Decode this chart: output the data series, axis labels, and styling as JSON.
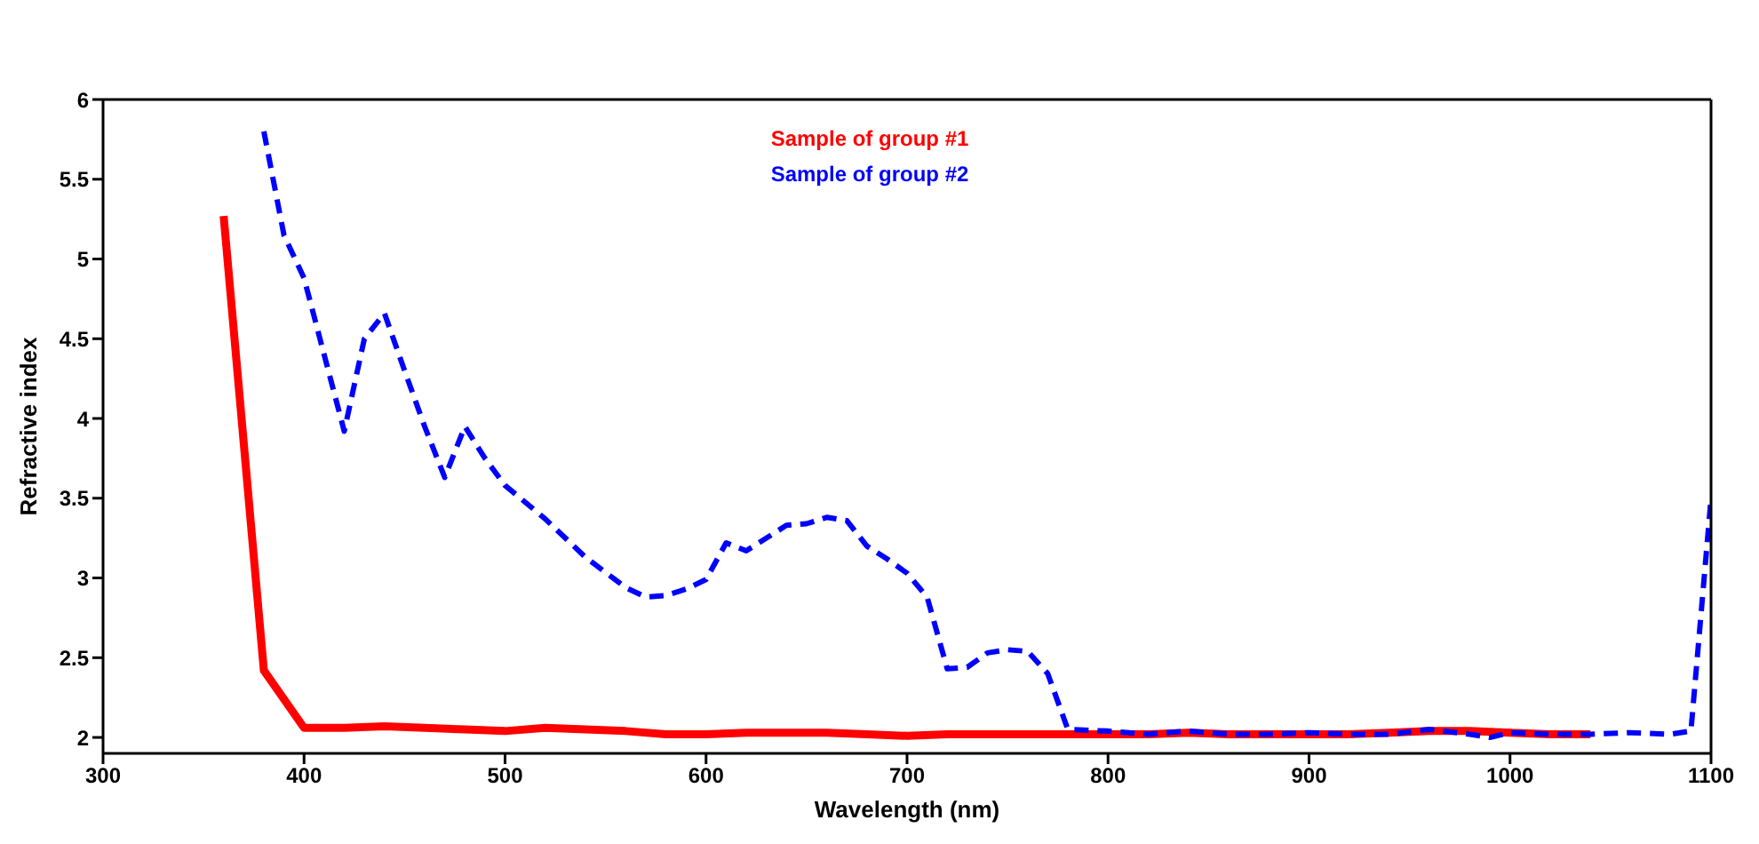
{
  "chart_data": {
    "type": "line",
    "xlabel": "Wavelength (nm)",
    "ylabel": "Refractive index",
    "xlim": [
      300,
      1100
    ],
    "xticks": [
      300,
      400,
      500,
      600,
      700,
      800,
      900,
      1000,
      1100
    ],
    "ylim": [
      1.9,
      6
    ],
    "yticks": [
      2,
      2.5,
      3,
      3.5,
      4,
      4.5,
      5,
      5.5,
      6
    ],
    "legend": "top",
    "marker": "none",
    "series": [
      {
        "name": "Sample of group #1",
        "color": "#ff0000",
        "line_style": "solid",
        "x": [
          360,
          380,
          400,
          420,
          440,
          460,
          480,
          500,
          520,
          540,
          560,
          580,
          600,
          620,
          640,
          660,
          680,
          700,
          720,
          740,
          760,
          780,
          800,
          820,
          840,
          860,
          880,
          900,
          920,
          940,
          960,
          980,
          1000,
          1020,
          1040
        ],
        "values": [
          5.27,
          2.42,
          2.06,
          2.06,
          2.07,
          2.06,
          2.05,
          2.04,
          2.06,
          2.05,
          2.04,
          2.02,
          2.02,
          2.03,
          2.03,
          2.03,
          2.02,
          2.01,
          2.02,
          2.02,
          2.02,
          2.02,
          2.02,
          2.02,
          2.03,
          2.02,
          2.02,
          2.02,
          2.02,
          2.03,
          2.04,
          2.04,
          2.03,
          2.02,
          2.02
        ]
      },
      {
        "name": "Sample of group #2",
        "color": "#0000ff",
        "line_style": "dashed",
        "x": [
          380,
          390,
          400,
          410,
          420,
          430,
          440,
          450,
          460,
          470,
          480,
          490,
          500,
          520,
          540,
          560,
          570,
          580,
          590,
          600,
          610,
          620,
          640,
          650,
          660,
          670,
          680,
          690,
          700,
          710,
          720,
          730,
          740,
          750,
          760,
          770,
          780,
          800,
          820,
          840,
          860,
          880,
          900,
          920,
          940,
          960,
          980,
          990,
          1000,
          1020,
          1040,
          1060,
          1080,
          1090,
          1100
        ],
        "values": [
          5.8,
          5.15,
          4.88,
          4.4,
          3.92,
          4.5,
          4.66,
          4.3,
          3.95,
          3.63,
          3.95,
          3.75,
          3.58,
          3.37,
          3.13,
          2.94,
          2.88,
          2.89,
          2.93,
          2.99,
          3.22,
          3.17,
          3.33,
          3.34,
          3.38,
          3.36,
          3.2,
          3.12,
          3.03,
          2.88,
          2.43,
          2.44,
          2.53,
          2.55,
          2.54,
          2.4,
          2.05,
          2.04,
          2.02,
          2.04,
          2.02,
          2.02,
          2.03,
          2.02,
          2.02,
          2.05,
          2.02,
          2.0,
          2.03,
          2.02,
          2.02,
          2.03,
          2.02,
          2.04,
          3.5
        ]
      }
    ]
  }
}
